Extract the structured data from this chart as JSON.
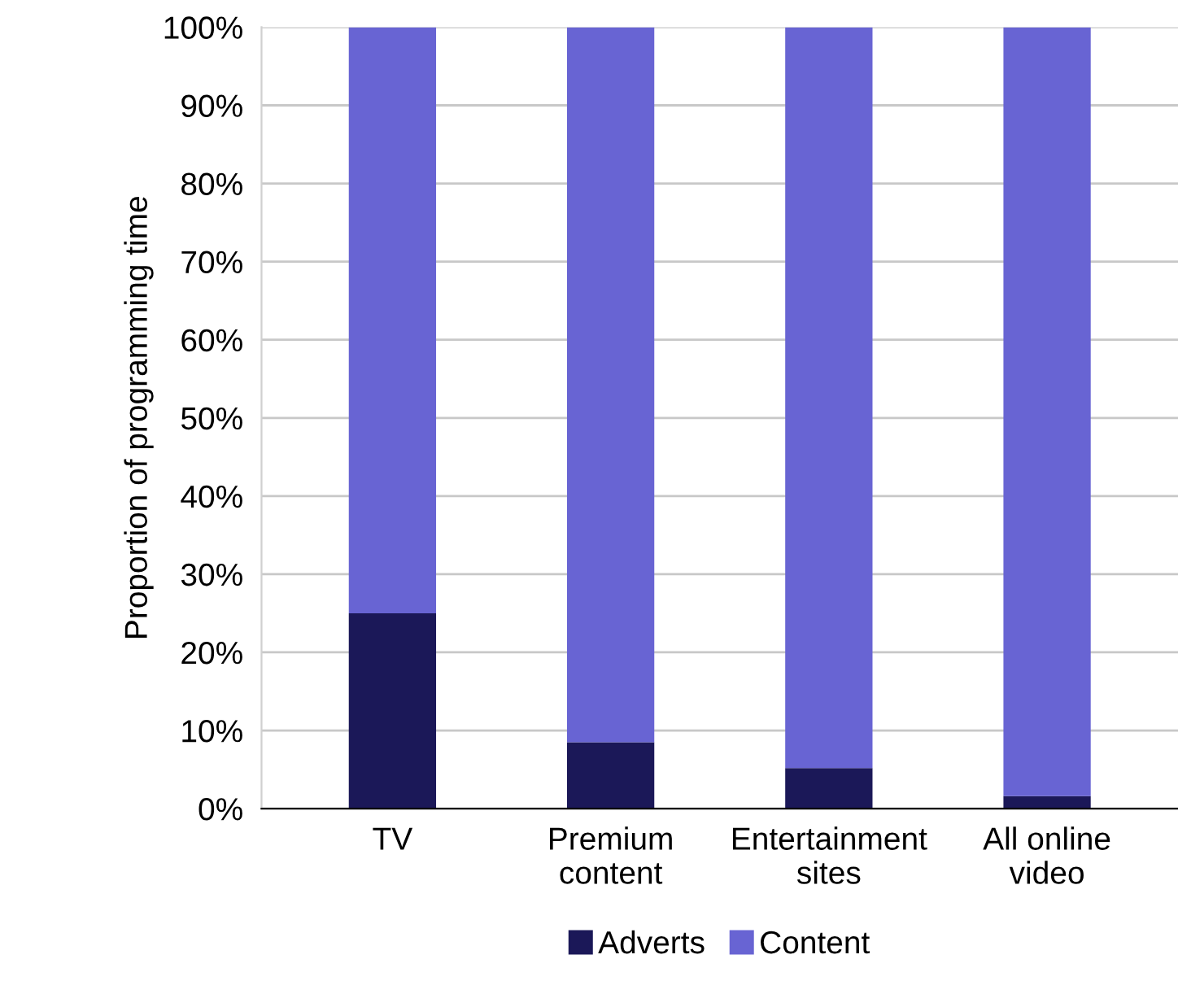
{
  "chart_data": {
    "type": "bar",
    "stacked": true,
    "ylabel": "Proportion of programming time",
    "categories": [
      "TV",
      "Premium\ncontent",
      "Entertainment\nsites",
      "All online\nvideo"
    ],
    "series": [
      {
        "name": "Adverts",
        "color": "#1b1858",
        "values": [
          25,
          8.5,
          5.2,
          1.6
        ]
      },
      {
        "name": "Content",
        "color": "#6864d3",
        "values": [
          75,
          91.5,
          94.8,
          98.4
        ]
      }
    ],
    "ylim": [
      0,
      100
    ],
    "yticks": [
      {
        "value": 0,
        "label": "0%"
      },
      {
        "value": 10,
        "label": "10%"
      },
      {
        "value": 20,
        "label": "20%"
      },
      {
        "value": 30,
        "label": "30%"
      },
      {
        "value": 40,
        "label": "40%"
      },
      {
        "value": 50,
        "label": "50%"
      },
      {
        "value": 60,
        "label": "60%"
      },
      {
        "value": 70,
        "label": "70%"
      },
      {
        "value": 80,
        "label": "80%"
      },
      {
        "value": 90,
        "label": "90%"
      },
      {
        "value": 100,
        "label": "100%"
      }
    ],
    "grid": "y",
    "legend": "bottom"
  }
}
